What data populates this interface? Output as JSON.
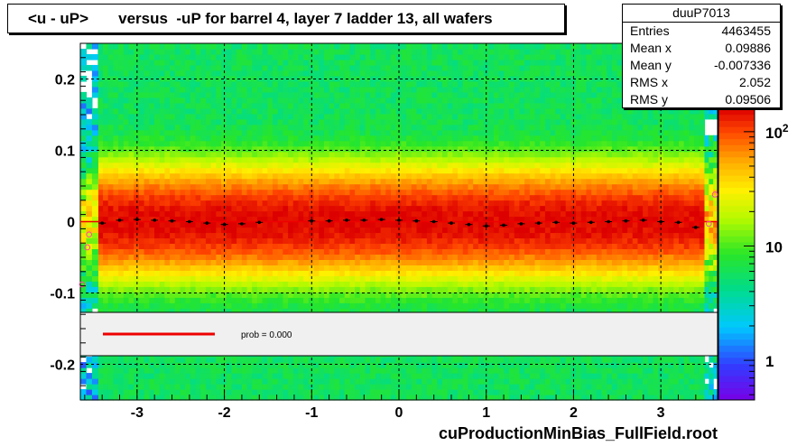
{
  "title": "<u - uP>       versus  -uP for barrel 4, layer 7 ladder 13, all wafers",
  "stats": {
    "name": "duuP7013",
    "rows": [
      {
        "label": "Entries",
        "value": "4463455"
      },
      {
        "label": "Mean x",
        "value": "0.09886"
      },
      {
        "label": "Mean y",
        "value": "-0.007336"
      },
      {
        "label": "RMS x",
        "value": "2.052"
      },
      {
        "label": "RMS y",
        "value": "0.09506"
      }
    ]
  },
  "footer": "cuProductionMinBias_FullField.root",
  "legend": {
    "text": "prob = 0.000",
    "line_color": "#ee0000",
    "background": "#f0f0f0"
  },
  "colors": {
    "profile_points": "#000000",
    "fit_points": "#ff44aa",
    "fit_line": "#ee0000"
  },
  "chart_data": {
    "type": "heatmap",
    "xlim": [
      -3.65,
      3.65
    ],
    "ylim": [
      -0.25,
      0.25
    ],
    "x_ticks": [
      -3,
      -2,
      -1,
      0,
      1,
      2,
      3
    ],
    "x_tick_labels": [
      "-3",
      "-2",
      "-1",
      "0",
      "1",
      "2",
      "3"
    ],
    "y_ticks": [
      -0.2,
      -0.1,
      0,
      0.1,
      0.2
    ],
    "y_tick_labels": [
      "-0.2",
      "-0.1",
      "0",
      "0.1",
      "0.2"
    ],
    "grid": true,
    "data_x_range": [
      -3.45,
      3.5
    ],
    "core_width_y": 0.055,
    "z_scale": "log",
    "z_ticks": [
      {
        "value": 1,
        "label": "1"
      },
      {
        "value": 10,
        "label": "10"
      },
      {
        "value": 100,
        "label": "10",
        "sup": "2"
      }
    ],
    "z_range": [
      0.45,
      160
    ],
    "profile": {
      "x": [
        -3.4,
        -3.2,
        -3.0,
        -2.8,
        -2.6,
        -2.4,
        -2.2,
        -2.0,
        -1.8,
        -1.6,
        -1.0,
        -0.8,
        -0.6,
        -0.4,
        -0.2,
        0.0,
        0.2,
        0.4,
        0.6,
        0.8,
        1.0,
        1.2,
        1.4,
        1.6,
        1.8,
        2.0,
        2.2,
        2.4,
        2.6,
        2.8,
        3.0,
        3.2,
        3.4
      ],
      "y": [
        -0.002,
        0.002,
        0.003,
        0.002,
        0.001,
        0.0,
        -0.002,
        -0.004,
        -0.003,
        -0.001,
        0.001,
        0.001,
        0.002,
        0.002,
        0.003,
        0.002,
        0.001,
        0.0,
        -0.002,
        -0.004,
        -0.006,
        -0.005,
        -0.003,
        -0.002,
        -0.001,
        -0.002,
        -0.001,
        0.0,
        0.001,
        0.002,
        0.0,
        -0.001,
        -0.008
      ]
    },
    "fit_points": {
      "x": [
        -3.63,
        -3.57,
        -3.55,
        3.55,
        3.62
      ],
      "y": [
        -0.088,
        -0.036,
        -0.018,
        -0.003,
        0.038
      ]
    }
  }
}
